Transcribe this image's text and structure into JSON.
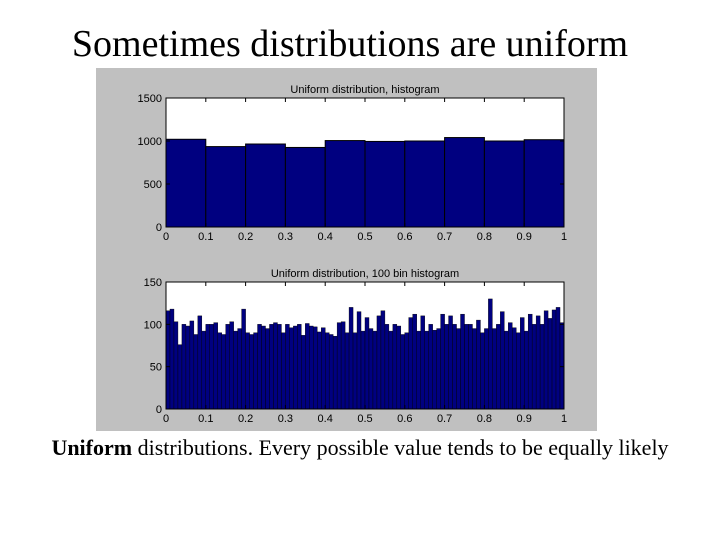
{
  "slide": {
    "title": "Sometimes distributions are uniform",
    "caption_bold": "Uniform",
    "caption_rest": " distributions.  Every possible value tends to be equally likely"
  },
  "colors": {
    "bar": "#000080",
    "panel": "#c0c0c0",
    "axes_bg": "#ffffff"
  },
  "chart_data": [
    {
      "type": "bar",
      "title": "Uniform distribution, histogram",
      "xlim": [
        0,
        1
      ],
      "ylim": [
        0,
        1500
      ],
      "xticks": [
        "0",
        "0.1",
        "0.2",
        "0.3",
        "0.4",
        "0.5",
        "0.6",
        "0.7",
        "0.8",
        "0.9",
        "1"
      ],
      "yticks": [
        "0",
        "500",
        "1000",
        "1500"
      ],
      "bin_width": 0.1,
      "bin_centers": [
        0.05,
        0.15,
        0.25,
        0.35,
        0.45,
        0.55,
        0.65,
        0.75,
        0.85,
        0.95
      ],
      "values": [
        1020,
        935,
        965,
        925,
        1005,
        995,
        1000,
        1040,
        1000,
        1015
      ]
    },
    {
      "type": "bar",
      "title": "Uniform distribution, 100 bin histogram",
      "xlim": [
        0,
        1
      ],
      "ylim": [
        0,
        150
      ],
      "xticks": [
        "0",
        "0.1",
        "0.2",
        "0.3",
        "0.4",
        "0.5",
        "0.6",
        "0.7",
        "0.8",
        "0.9",
        "1"
      ],
      "yticks": [
        "0",
        "50",
        "100",
        "150"
      ],
      "bin_width": 0.01,
      "values": [
        116,
        118,
        103,
        76,
        100,
        98,
        104,
        88,
        110,
        92,
        100,
        100,
        102,
        90,
        88,
        100,
        103,
        92,
        95,
        118,
        90,
        88,
        90,
        100,
        98,
        95,
        100,
        102,
        100,
        90,
        100,
        96,
        98,
        100,
        87,
        101,
        98,
        97,
        91,
        96,
        90,
        88,
        86,
        102,
        103,
        90,
        120,
        90,
        115,
        92,
        108,
        95,
        92,
        110,
        116,
        100,
        92,
        100,
        98,
        88,
        90,
        108,
        112,
        92,
        110,
        92,
        100,
        93,
        95,
        112,
        100,
        110,
        100,
        95,
        112,
        100,
        100,
        95,
        105,
        90,
        95,
        130,
        95,
        100,
        115,
        92,
        102,
        96,
        90,
        108,
        92,
        112,
        100,
        110,
        100,
        116,
        107,
        117,
        120,
        102
      ]
    }
  ]
}
